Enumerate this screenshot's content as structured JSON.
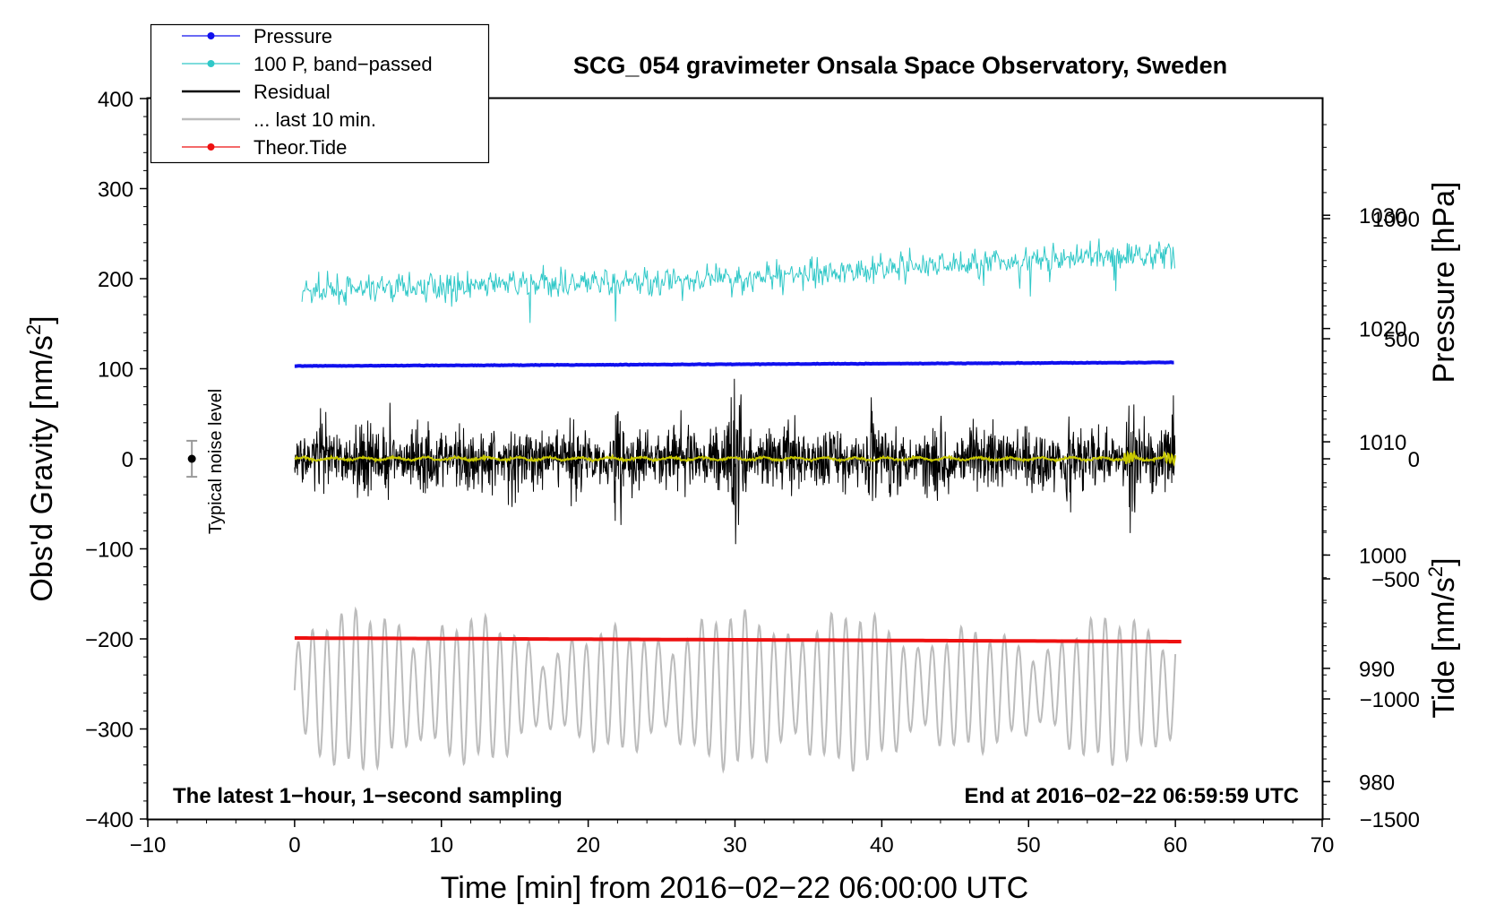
{
  "chart_data": {
    "type": "line",
    "title": "SCG_054 gravimeter Onsala Space Observatory, Sweden",
    "xlabel": "Time [min] from 2016−02−22 06:00:00 UTC",
    "ylabel_left": "Obs'd Gravity [nm/s",
    "ylabel_left_sup": "2",
    "ylabel_left_end": "]",
    "ylabel_right_pressure": "Pressure [hPa]",
    "ylabel_right_tide": "Tide [nm/s",
    "ylabel_right_tide_sup": "2",
    "ylabel_right_tide_end": "]",
    "xlim": [
      -10,
      70
    ],
    "ylim": [
      -400,
      400
    ],
    "pressure_axis": {
      "range": [
        976.7,
        1040.3
      ],
      "ticks": [
        980,
        990,
        1000,
        1010,
        1020,
        1030
      ]
    },
    "tide_axis": {
      "range": [
        -1500,
        1500
      ],
      "ticks": [
        -1500,
        -1000,
        -500,
        0,
        500,
        1000
      ]
    },
    "x_ticks": [
      -10,
      0,
      10,
      20,
      30,
      40,
      50,
      60,
      70
    ],
    "x_tick_labels": [
      "−10",
      "0",
      "10",
      "20",
      "30",
      "40",
      "50",
      "60",
      "70"
    ],
    "y_ticks": [
      -400,
      -300,
      -200,
      -100,
      0,
      100,
      200,
      300,
      400
    ],
    "y_tick_labels": [
      "−400",
      "−300",
      "−200",
      "−100",
      "0",
      "100",
      "200",
      "300",
      "400"
    ],
    "pressure_tick_labels": [
      "980",
      "990",
      "1000",
      "1010",
      "1020",
      "1030"
    ],
    "tide_tick_labels": [
      "−1500",
      "−1000",
      "−500",
      "0",
      "500",
      "1000"
    ],
    "legend": [
      {
        "label": "Pressure",
        "color": "#1010ee",
        "marker": true
      },
      {
        "label": "100 P, band−passed",
        "color": "#30c8c8",
        "marker": true
      },
      {
        "label": "Residual",
        "color": "#000000",
        "marker": false
      },
      {
        "label": "... last 10 min.",
        "color": "#bcbcbc",
        "marker": false
      },
      {
        "label": "Theor.Tide",
        "color": "#ee1010",
        "marker": true
      }
    ],
    "annotations": {
      "left": "The latest 1−hour, 1−second sampling",
      "right": "End at 2016−02−22 06:59:59 UTC",
      "noise": "Typical noise level"
    },
    "noise_bar": {
      "x": -7,
      "center": 0,
      "halfwidth": 20
    },
    "series": [
      {
        "name": "Pressure",
        "axis": "left",
        "color": "#1010ee",
        "x_range": [
          0,
          60
        ],
        "start": 103,
        "end": 107
      },
      {
        "name": "100 P, band−passed",
        "axis": "left",
        "color": "#30c8c8",
        "x_range": [
          0.5,
          60
        ],
        "trend": [
          [
            0.5,
            185
          ],
          [
            10,
            192
          ],
          [
            20,
            195
          ],
          [
            30,
            200
          ],
          [
            40,
            212
          ],
          [
            50,
            220
          ],
          [
            60,
            228
          ]
        ],
        "amplitude": 15
      },
      {
        "name": "Residual",
        "axis": "left",
        "color": "#000000",
        "x_range": [
          0,
          60
        ],
        "center": 0,
        "typical_amplitude": 40,
        "peak_range": [
          -120,
          120
        ]
      },
      {
        "name": "Residual smoothed",
        "axis": "left",
        "color": "#c8c800",
        "x_range": [
          0,
          60
        ],
        "center": 0
      },
      {
        "name": "... last 10 min.",
        "axis": "left",
        "color": "#bcbcbc",
        "x_range": [
          0,
          60
        ],
        "center": -257,
        "amplitude_range": [
          -370,
          -195
        ]
      },
      {
        "name": "Theor.Tide",
        "axis": "left",
        "color": "#ee1010",
        "x_range": [
          0,
          60.5
        ],
        "start": -199,
        "end": -203
      }
    ]
  }
}
